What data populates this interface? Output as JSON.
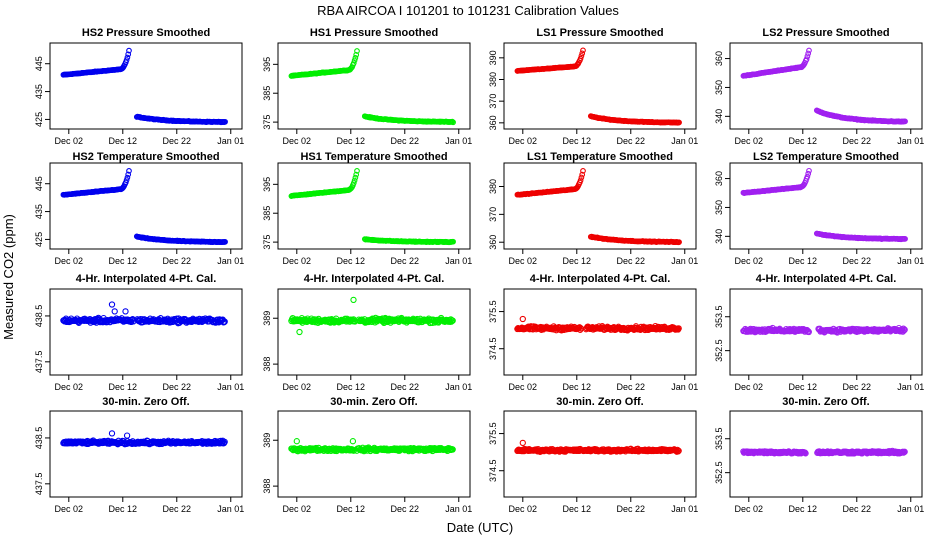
{
  "title": "RBA   AIRCOA I   101201 to 101231   Calibration Values",
  "xlabel": "Date (UTC)",
  "ylabel": "Measured CO2 (ppm)",
  "colors": {
    "HS2": "#0000ee",
    "HS1": "#00ee00",
    "LS1": "#ee0000",
    "LS2": "#a020f0"
  },
  "chart_data": [
    {
      "type": "scatter",
      "row": 0,
      "col": 0,
      "title": "HS2 Pressure Smoothed",
      "series": "HS2",
      "color": "#0000ee",
      "ylim": [
        423,
        451
      ],
      "yticks": [
        425,
        435,
        445
      ],
      "pattern": "smooth",
      "y_start": 441,
      "y_mid": 443,
      "y_peak": 451,
      "y_drop": 426,
      "y_end": 424,
      "x_days": [
        1,
        31
      ],
      "xticks": [
        "Dec 02",
        "Dec 12",
        "Dec 22",
        "Jan 01"
      ]
    },
    {
      "type": "scatter",
      "row": 0,
      "col": 1,
      "title": "HS1 Pressure Smoothed",
      "series": "HS1",
      "color": "#00ee00",
      "ylim": [
        374,
        401
      ],
      "yticks": [
        375,
        385,
        395
      ],
      "pattern": "smooth",
      "y_start": 391,
      "y_mid": 393,
      "y_peak": 401,
      "y_drop": 377,
      "y_end": 375,
      "x_days": [
        1,
        31
      ],
      "xticks": [
        "Dec 02",
        "Dec 12",
        "Dec 22",
        "Jan 01"
      ]
    },
    {
      "type": "scatter",
      "row": 0,
      "col": 2,
      "title": "LS1 Pressure Smoothed",
      "series": "LS1",
      "color": "#ee0000",
      "ylim": [
        359,
        395
      ],
      "yticks": [
        360,
        370,
        380,
        390
      ],
      "pattern": "smooth",
      "y_start": 384,
      "y_mid": 386,
      "y_peak": 395,
      "y_drop": 363,
      "y_end": 360,
      "x_days": [
        1,
        31
      ],
      "xticks": [
        "Dec 02",
        "Dec 12",
        "Dec 22",
        "Jan 01"
      ]
    },
    {
      "type": "scatter",
      "row": 0,
      "col": 3,
      "title": "LS2 Pressure Smoothed",
      "series": "LS2",
      "color": "#a020f0",
      "ylim": [
        337,
        364
      ],
      "yticks": [
        340,
        350,
        360
      ],
      "pattern": "smooth",
      "y_start": 354,
      "y_mid": 357,
      "y_peak": 364,
      "y_drop": 342,
      "y_end": 338,
      "x_days": [
        1,
        31
      ],
      "xticks": [
        "Dec 02",
        "Dec 12",
        "Dec 22",
        "Jan 01"
      ]
    },
    {
      "type": "scatter",
      "row": 1,
      "col": 0,
      "title": "HS2 Temperature Smoothed",
      "series": "HS2",
      "color": "#0000ee",
      "ylim": [
        423,
        451
      ],
      "yticks": [
        425,
        435,
        445
      ],
      "pattern": "smooth",
      "y_start": 441,
      "y_mid": 443,
      "y_peak": 451,
      "y_drop": 426,
      "y_end": 424,
      "x_days": [
        1,
        31
      ],
      "xticks": [
        "Dec 02",
        "Dec 12",
        "Dec 22",
        "Jan 01"
      ]
    },
    {
      "type": "scatter",
      "row": 1,
      "col": 1,
      "title": "HS1 Temperature Smoothed",
      "series": "HS1",
      "color": "#00ee00",
      "ylim": [
        374,
        401
      ],
      "yticks": [
        375,
        385,
        395
      ],
      "pattern": "smooth",
      "y_start": 391,
      "y_mid": 393,
      "y_peak": 401,
      "y_drop": 376,
      "y_end": 375,
      "x_days": [
        1,
        31
      ],
      "xticks": [
        "Dec 02",
        "Dec 12",
        "Dec 22",
        "Jan 01"
      ]
    },
    {
      "type": "scatter",
      "row": 1,
      "col": 2,
      "title": "LS1 Temperature Smoothed",
      "series": "LS1",
      "color": "#ee0000",
      "ylim": [
        359,
        387
      ],
      "yticks": [
        360,
        370,
        380
      ],
      "pattern": "smooth",
      "y_start": 377,
      "y_mid": 379,
      "y_peak": 387,
      "y_drop": 362,
      "y_end": 360,
      "x_days": [
        1,
        31
      ],
      "xticks": [
        "Dec 02",
        "Dec 12",
        "Dec 22",
        "Jan 01"
      ]
    },
    {
      "type": "scatter",
      "row": 1,
      "col": 3,
      "title": "LS2 Temperature Smoothed",
      "series": "LS2",
      "color": "#a020f0",
      "ylim": [
        337,
        364
      ],
      "yticks": [
        340,
        350,
        360
      ],
      "pattern": "smooth",
      "y_start": 355,
      "y_mid": 357,
      "y_peak": 364,
      "y_drop": 341,
      "y_end": 339,
      "x_days": [
        1,
        31
      ],
      "xticks": [
        "Dec 02",
        "Dec 12",
        "Dec 22",
        "Jan 01"
      ]
    },
    {
      "type": "scatter",
      "row": 2,
      "col": 0,
      "title": "4-Hr. Interpolated 4-Pt. Cal.",
      "series": "HS2",
      "color": "#0000ee",
      "ylim": [
        437.3,
        439.0
      ],
      "yticks": [
        437.5,
        438.5
      ],
      "pattern": "noise",
      "center": 438.4,
      "spread": 0.07,
      "outliers": [
        [
          10,
          438.75
        ],
        [
          12.5,
          438.6
        ],
        [
          10.5,
          438.6
        ]
      ],
      "gap": [
        14.0,
        14.6
      ],
      "x_days": [
        1,
        31
      ],
      "xticks": [
        "Dec 02",
        "Dec 12",
        "Dec 22",
        "Jan 01"
      ]
    },
    {
      "type": "scatter",
      "row": 2,
      "col": 1,
      "title": "4-Hr. Interpolated 4-Pt. Cal.",
      "series": "HS1",
      "color": "#00ee00",
      "ylim": [
        387.85,
        389.55
      ],
      "yticks": [
        388.0,
        389.0
      ],
      "pattern": "noise",
      "center": 388.95,
      "spread": 0.07,
      "outliers": [
        [
          12.5,
          389.4
        ],
        [
          2.5,
          388.7
        ]
      ],
      "gap": [
        12.8,
        13.4
      ],
      "x_days": [
        1,
        31
      ],
      "xticks": [
        "Dec 02",
        "Dec 12",
        "Dec 22",
        "Jan 01"
      ]
    },
    {
      "type": "scatter",
      "row": 2,
      "col": 2,
      "title": "4-Hr. Interpolated 4-Pt. Cal.",
      "series": "LS1",
      "color": "#ee0000",
      "ylim": [
        373.9,
        376.0
      ],
      "yticks": [
        374.5,
        375.5
      ],
      "pattern": "noise",
      "center": 375.05,
      "spread": 0.07,
      "outliers": [
        [
          2,
          375.3
        ]
      ],
      "gap": [
        12.8,
        13.6
      ],
      "x_days": [
        1,
        31
      ],
      "xticks": [
        "Dec 02",
        "Dec 12",
        "Dec 22",
        "Jan 01"
      ]
    },
    {
      "type": "scatter",
      "row": 2,
      "col": 3,
      "title": "4-Hr. Interpolated 4-Pt. Cal.",
      "series": "LS2",
      "color": "#a020f0",
      "ylim": [
        351.9,
        354.2
      ],
      "yticks": [
        352.5,
        353.5
      ],
      "pattern": "noise",
      "center": 353.1,
      "spread": 0.08,
      "outliers": [],
      "gap": [
        13.2,
        14.8
      ],
      "x_days": [
        1,
        31
      ],
      "xticks": [
        "Dec 02",
        "Dec 12",
        "Dec 22",
        "Jan 01"
      ]
    },
    {
      "type": "scatter",
      "row": 3,
      "col": 0,
      "title": "30-min. Zero Off.",
      "series": "HS2",
      "color": "#0000ee",
      "ylim": [
        437.3,
        439.0
      ],
      "yticks": [
        437.5,
        438.5
      ],
      "pattern": "noise",
      "center": 438.4,
      "spread": 0.05,
      "outliers": [
        [
          10,
          438.6
        ],
        [
          12.8,
          438.55
        ]
      ],
      "gap": [
        12.4,
        12.7
      ],
      "x_days": [
        1,
        31
      ],
      "xticks": [
        "Dec 02",
        "Dec 12",
        "Dec 22",
        "Jan 01"
      ]
    },
    {
      "type": "scatter",
      "row": 3,
      "col": 1,
      "title": "30-min. Zero Off.",
      "series": "HS1",
      "color": "#00ee00",
      "ylim": [
        387.85,
        389.55
      ],
      "yticks": [
        388.0,
        389.0
      ],
      "pattern": "noise",
      "center": 388.8,
      "spread": 0.05,
      "outliers": [
        [
          2,
          388.98
        ],
        [
          12.4,
          388.98
        ]
      ],
      "gap": [
        12.6,
        13.0
      ],
      "x_days": [
        1,
        31
      ],
      "xticks": [
        "Dec 02",
        "Dec 12",
        "Dec 22",
        "Jan 01"
      ]
    },
    {
      "type": "scatter",
      "row": 3,
      "col": 2,
      "title": "30-min. Zero Off.",
      "series": "LS1",
      "color": "#ee0000",
      "ylim": [
        373.9,
        376.0
      ],
      "yticks": [
        374.5,
        375.5
      ],
      "pattern": "noise",
      "center": 375.05,
      "spread": 0.05,
      "outliers": [
        [
          2,
          375.25
        ]
      ],
      "gap": [
        12.8,
        13.2
      ],
      "x_days": [
        1,
        31
      ],
      "xticks": [
        "Dec 02",
        "Dec 12",
        "Dec 22",
        "Jan 01"
      ]
    },
    {
      "type": "scatter",
      "row": 3,
      "col": 3,
      "title": "30-min. Zero Off.",
      "series": "LS2",
      "color": "#a020f0",
      "ylim": [
        351.9,
        354.2
      ],
      "yticks": [
        352.5,
        353.5
      ],
      "pattern": "noise",
      "center": 353.1,
      "spread": 0.05,
      "outliers": [],
      "gap": [
        12.6,
        14.6
      ],
      "x_days": [
        1,
        31
      ],
      "xticks": [
        "Dec 02",
        "Dec 12",
        "Dec 22",
        "Jan 01"
      ]
    }
  ]
}
